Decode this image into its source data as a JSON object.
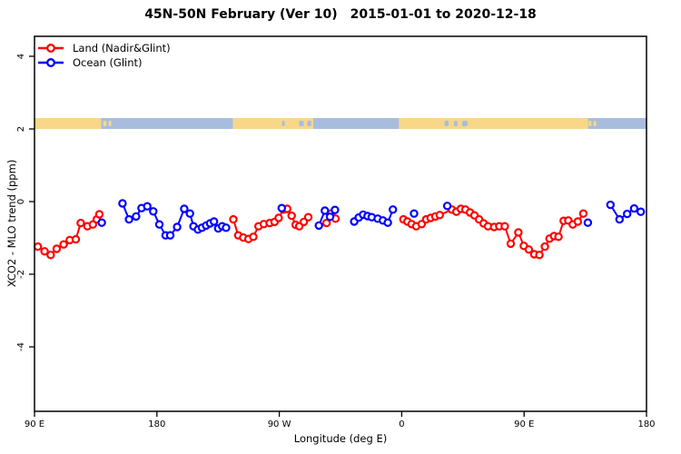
{
  "title": {
    "region": "45N-50N February (Ver 10)",
    "daterange": "2015-01-01 to 2020-12-18"
  },
  "colors": {
    "land": "#ff0000",
    "ocean": "#0000ff",
    "land_band": "#f9d789",
    "ocean_band": "#a8bddd",
    "axis": "#000000",
    "background": "#ffffff"
  },
  "legend": {
    "items": [
      {
        "label": "Land (Nadir&Glint)",
        "color_key": "land"
      },
      {
        "label": "Ocean (Glint)",
        "color_key": "ocean"
      }
    ]
  },
  "axes": {
    "x": {
      "label": "Longitude (deg E)",
      "range_deg_unwrapped": [
        90,
        540
      ],
      "ticks": [
        {
          "lon": 90,
          "label": "90 E"
        },
        {
          "lon": 180,
          "label": "180"
        },
        {
          "lon": 270,
          "label": "90 W"
        },
        {
          "lon": 360,
          "label": "0"
        },
        {
          "lon": 450,
          "label": "90 E"
        },
        {
          "lon": 540,
          "label": "180"
        }
      ]
    },
    "y": {
      "label": "XCO2 - MLO trend (ppm)",
      "range": [
        -5.8,
        4.6
      ],
      "ticks": [
        {
          "value": 4,
          "label": "4"
        },
        {
          "value": 2,
          "label": "2"
        },
        {
          "value": 0,
          "label": "0"
        },
        {
          "value": -2,
          "label": "-2"
        },
        {
          "value": -4,
          "label": "-4"
        }
      ]
    }
  },
  "chart_data": {
    "type": "line",
    "marker": "open-circle",
    "title": "45N-50N February (Ver 10)   2015-01-01 to 2020-12-18",
    "xlabel": "Longitude (deg E)",
    "ylabel": "XCO2 - MLO trend (ppm)",
    "xlim_deg_east_unwrapped": [
      90,
      540
    ],
    "ylim": [
      -5.8,
      4.6
    ],
    "grid": false,
    "legend_position": "top-left",
    "land_ocean_band": {
      "value_top": 2.3,
      "value_bottom": 2.0,
      "segments": [
        {
          "from": 90,
          "to": 139,
          "type": "land"
        },
        {
          "from": 139,
          "to": 236,
          "type": "ocean"
        },
        {
          "from": 236,
          "to": 295,
          "type": "land"
        },
        {
          "from": 295,
          "to": 358,
          "type": "ocean"
        },
        {
          "from": 358,
          "to": 497,
          "type": "land"
        },
        {
          "from": 497,
          "to": 540,
          "type": "ocean"
        }
      ],
      "patches": [
        {
          "from": 140.5,
          "to": 143.0,
          "type": "land"
        },
        {
          "from": 144.5,
          "to": 146.5,
          "type": "land"
        },
        {
          "from": 272.0,
          "to": 274.0,
          "type": "ocean"
        },
        {
          "from": 284.5,
          "to": 288.0,
          "type": "ocean"
        },
        {
          "from": 290.5,
          "to": 293.5,
          "type": "ocean"
        },
        {
          "from": 391.5,
          "to": 394.5,
          "type": "ocean"
        },
        {
          "from": 398.5,
          "to": 401.0,
          "type": "ocean"
        },
        {
          "from": 404.5,
          "to": 408.5,
          "type": "ocean"
        },
        {
          "from": 497.5,
          "to": 499.5,
          "type": "land"
        },
        {
          "from": 501.0,
          "to": 503.0,
          "type": "land"
        }
      ]
    },
    "series": [
      {
        "name": "Land (Nadir&Glint)",
        "color_key": "land",
        "segments": [
          [
            [
              92.5,
              -1.24
            ],
            [
              97.4,
              -1.37
            ],
            [
              101.9,
              -1.47
            ],
            [
              106.3,
              -1.3
            ],
            [
              111.4,
              -1.18
            ],
            [
              115.9,
              -1.06
            ],
            [
              120.4,
              -1.04
            ],
            [
              124.0,
              -0.59
            ],
            [
              128.9,
              -0.68
            ],
            [
              132.9,
              -0.63
            ],
            [
              135.8,
              -0.49
            ],
            [
              137.7,
              -0.35
            ]
          ],
          [
            [
              236.2,
              -0.49
            ],
            [
              239.8,
              -0.93
            ],
            [
              243.5,
              -0.99
            ],
            [
              247.3,
              -1.03
            ],
            [
              250.9,
              -0.97
            ],
            [
              254.7,
              -0.68
            ],
            [
              258.6,
              -0.62
            ],
            [
              262.9,
              -0.59
            ],
            [
              266.5,
              -0.56
            ],
            [
              269.5,
              -0.45
            ],
            [
              273.0,
              -0.22
            ],
            [
              275.8,
              -0.2
            ],
            [
              279.1,
              -0.39
            ],
            [
              282.0,
              -0.64
            ],
            [
              284.7,
              -0.68
            ],
            [
              288.0,
              -0.56
            ],
            [
              291.3,
              -0.43
            ]
          ],
          [
            [
              304.7,
              -0.59
            ],
            [
              308.0,
              -0.33
            ],
            [
              311.3,
              -0.47
            ]
          ],
          [
            [
              361.3,
              -0.49
            ],
            [
              364.2,
              -0.55
            ],
            [
              367.3,
              -0.62
            ],
            [
              370.7,
              -0.68
            ],
            [
              374.7,
              -0.62
            ],
            [
              378.0,
              -0.49
            ],
            [
              381.3,
              -0.45
            ],
            [
              384.7,
              -0.41
            ],
            [
              388.0,
              -0.37
            ],
            [
              396.9,
              -0.22
            ],
            [
              400.2,
              -0.28
            ],
            [
              403.5,
              -0.2
            ],
            [
              406.9,
              -0.22
            ],
            [
              410.2,
              -0.3
            ],
            [
              413.5,
              -0.38
            ],
            [
              416.9,
              -0.49
            ],
            [
              420.2,
              -0.6
            ],
            [
              423.5,
              -0.68
            ],
            [
              428.0,
              -0.7
            ],
            [
              431.8,
              -0.68
            ],
            [
              435.8,
              -0.68
            ],
            [
              440.2,
              -1.16
            ],
            [
              445.8,
              -0.85
            ],
            [
              449.8,
              -1.22
            ],
            [
              453.5,
              -1.32
            ],
            [
              457.5,
              -1.45
            ],
            [
              461.3,
              -1.47
            ],
            [
              465.3,
              -1.24
            ],
            [
              468.7,
              -1.02
            ],
            [
              472.0,
              -0.95
            ],
            [
              475.3,
              -0.97
            ],
            [
              479.1,
              -0.53
            ],
            [
              482.5,
              -0.52
            ],
            [
              485.8,
              -0.63
            ],
            [
              489.5,
              -0.55
            ],
            [
              493.5,
              -0.33
            ]
          ]
        ]
      },
      {
        "name": "Ocean (Glint)",
        "color_key": "ocean",
        "segments": [
          [
            [
              139.5,
              -0.58
            ]
          ],
          [
            [
              154.7,
              -0.05
            ],
            [
              159.5,
              -0.49
            ],
            [
              164.7,
              -0.41
            ],
            [
              168.7,
              -0.18
            ],
            [
              172.9,
              -0.13
            ],
            [
              177.3,
              -0.27
            ],
            [
              181.8,
              -0.63
            ],
            [
              186.4,
              -0.93
            ],
            [
              189.8,
              -0.93
            ],
            [
              194.9,
              -0.7
            ],
            [
              200.1,
              -0.2
            ],
            [
              204.3,
              -0.33
            ],
            [
              206.9,
              -0.68
            ],
            [
              210.2,
              -0.77
            ],
            [
              213.1,
              -0.72
            ],
            [
              216.2,
              -0.66
            ],
            [
              219.1,
              -0.6
            ],
            [
              222.0,
              -0.55
            ],
            [
              225.1,
              -0.74
            ],
            [
              228.0,
              -0.68
            ],
            [
              230.9,
              -0.72
            ]
          ],
          [
            [
              271.8,
              -0.18
            ]
          ],
          [
            [
              299.1,
              -0.66
            ],
            [
              303.5,
              -0.25
            ],
            [
              307.3,
              -0.42
            ],
            [
              310.9,
              -0.23
            ]
          ],
          [
            [
              325.1,
              -0.55
            ],
            [
              328.4,
              -0.44
            ],
            [
              331.6,
              -0.36
            ],
            [
              334.9,
              -0.4
            ],
            [
              338.0,
              -0.43
            ],
            [
              342.4,
              -0.47
            ],
            [
              346.2,
              -0.52
            ],
            [
              349.8,
              -0.58
            ],
            [
              353.5,
              -0.22
            ]
          ],
          [
            [
              369.1,
              -0.33
            ]
          ],
          [
            [
              393.5,
              -0.12
            ]
          ],
          [
            [
              496.9,
              -0.58
            ]
          ],
          [
            [
              513.5,
              -0.09
            ],
            [
              520.2,
              -0.49
            ],
            [
              525.8,
              -0.34
            ],
            [
              530.9,
              -0.19
            ],
            [
              535.8,
              -0.28
            ]
          ]
        ]
      }
    ]
  }
}
